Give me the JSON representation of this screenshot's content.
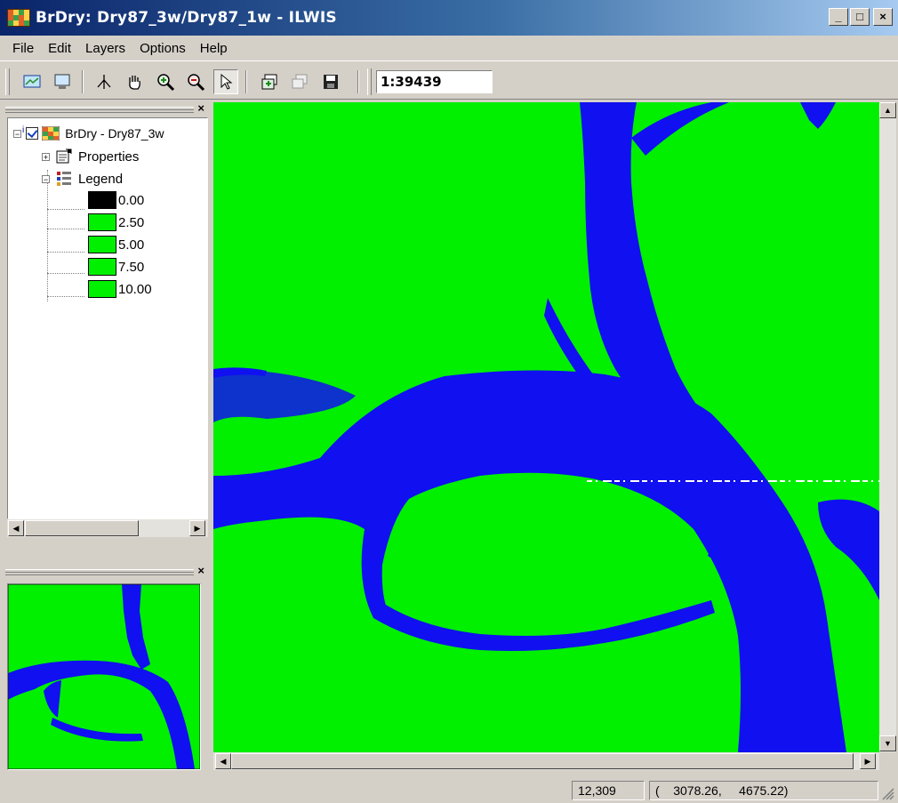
{
  "window": {
    "title": "BrDry: Dry87_3w/Dry87_1w - ILWIS",
    "minimize": "_",
    "maximize": "□",
    "close": "×"
  },
  "menu": [
    "File",
    "Edit",
    "Layers",
    "Options",
    "Help"
  ],
  "toolbar": {
    "icons": [
      "entire-map-icon",
      "normal-view-icon",
      "measure-distance-icon",
      "pan-icon",
      "zoom-in-icon",
      "zoom-out-icon",
      "select-pointer-icon",
      "add-layer-icon",
      "copy-icon",
      "save-icon"
    ],
    "scale": "1:39439"
  },
  "layers_panel": {
    "close": "×",
    "layer_name": "BrDry - Dry87_3w",
    "layer_info_marker": "i",
    "properties_label": "Properties",
    "legend_label": "Legend",
    "legend": [
      {
        "value": "0.00",
        "color": "#000000"
      },
      {
        "value": "2.50",
        "color": "#00f000"
      },
      {
        "value": "5.00",
        "color": "#00f000"
      },
      {
        "value": "7.50",
        "color": "#00f000"
      },
      {
        "value": "10.00",
        "color": "#00f000"
      }
    ]
  },
  "overview_panel": {
    "close": "×"
  },
  "map": {
    "land_color": "#00f000",
    "water_color": "#1010f0"
  },
  "status": {
    "rowcol": "12,309",
    "coords": "(    3078.26,     4675.22)"
  }
}
